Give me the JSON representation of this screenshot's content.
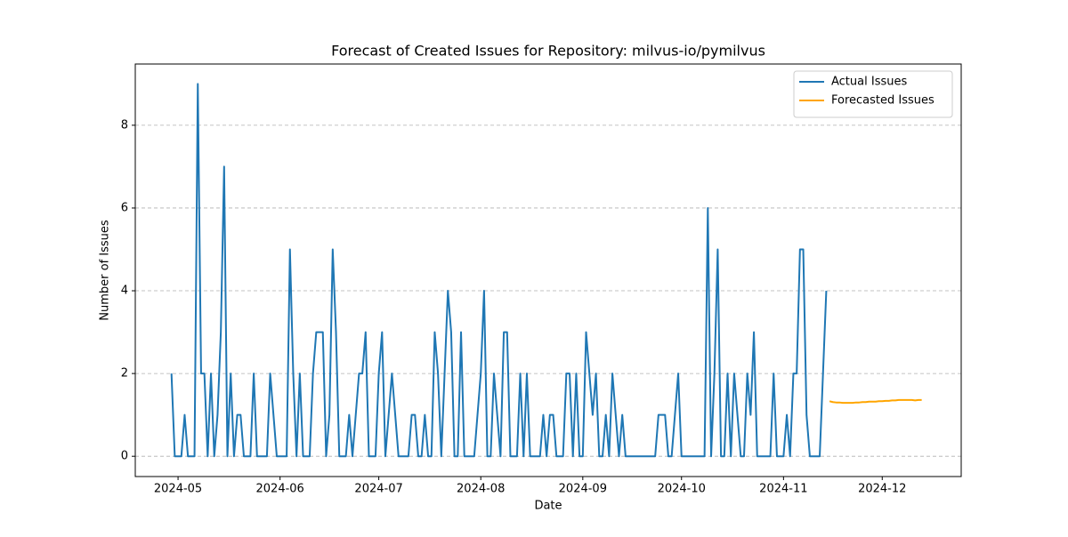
{
  "chart_data": {
    "type": "line",
    "title": "Forecast of Created Issues for Repository: milvus-io/pymilvus",
    "x_label": "Date",
    "y_label": "Number of Issues",
    "xlim": [
      "2024-04-18",
      "2024-12-25"
    ],
    "ylim": [
      -0.49,
      9.48
    ],
    "xticks": [
      {
        "value": "2024-05-01",
        "label": "2024-05"
      },
      {
        "value": "2024-06-01",
        "label": "2024-06"
      },
      {
        "value": "2024-07-01",
        "label": "2024-07"
      },
      {
        "value": "2024-08-01",
        "label": "2024-08"
      },
      {
        "value": "2024-09-01",
        "label": "2024-09"
      },
      {
        "value": "2024-10-01",
        "label": "2024-10"
      },
      {
        "value": "2024-11-01",
        "label": "2024-11"
      },
      {
        "value": "2024-12-01",
        "label": "2024-12"
      }
    ],
    "yticks": [
      0,
      2,
      4,
      6,
      8
    ],
    "grid": true,
    "legend": "upper right",
    "series": [
      {
        "name": "Actual Issues",
        "color": "#1f77b4",
        "x": [
          "2024-04-29",
          "2024-04-30",
          "2024-05-01",
          "2024-05-02",
          "2024-05-03",
          "2024-05-04",
          "2024-05-05",
          "2024-05-06",
          "2024-05-07",
          "2024-05-08",
          "2024-05-09",
          "2024-05-10",
          "2024-05-11",
          "2024-05-12",
          "2024-05-13",
          "2024-05-14",
          "2024-05-15",
          "2024-05-16",
          "2024-05-17",
          "2024-05-18",
          "2024-05-19",
          "2024-05-20",
          "2024-05-21",
          "2024-05-22",
          "2024-05-23",
          "2024-05-24",
          "2024-05-25",
          "2024-05-26",
          "2024-05-27",
          "2024-05-28",
          "2024-05-29",
          "2024-05-30",
          "2024-05-31",
          "2024-06-01",
          "2024-06-02",
          "2024-06-03",
          "2024-06-04",
          "2024-06-05",
          "2024-06-06",
          "2024-06-07",
          "2024-06-08",
          "2024-06-09",
          "2024-06-10",
          "2024-06-11",
          "2024-06-12",
          "2024-06-13",
          "2024-06-14",
          "2024-06-15",
          "2024-06-16",
          "2024-06-17",
          "2024-06-18",
          "2024-06-19",
          "2024-06-20",
          "2024-06-21",
          "2024-06-22",
          "2024-06-23",
          "2024-06-24",
          "2024-06-25",
          "2024-06-26",
          "2024-06-27",
          "2024-06-28",
          "2024-06-29",
          "2024-06-30",
          "2024-07-01",
          "2024-07-02",
          "2024-07-03",
          "2024-07-04",
          "2024-07-05",
          "2024-07-06",
          "2024-07-07",
          "2024-07-08",
          "2024-07-09",
          "2024-07-10",
          "2024-07-11",
          "2024-07-12",
          "2024-07-13",
          "2024-07-14",
          "2024-07-15",
          "2024-07-16",
          "2024-07-17",
          "2024-07-18",
          "2024-07-19",
          "2024-07-20",
          "2024-07-21",
          "2024-07-22",
          "2024-07-23",
          "2024-07-24",
          "2024-07-25",
          "2024-07-26",
          "2024-07-27",
          "2024-07-28",
          "2024-07-29",
          "2024-07-30",
          "2024-07-31",
          "2024-08-01",
          "2024-08-02",
          "2024-08-03",
          "2024-08-04",
          "2024-08-05",
          "2024-08-06",
          "2024-08-07",
          "2024-08-08",
          "2024-08-09",
          "2024-08-10",
          "2024-08-11",
          "2024-08-12",
          "2024-08-13",
          "2024-08-14",
          "2024-08-15",
          "2024-08-16",
          "2024-08-17",
          "2024-08-18",
          "2024-08-19",
          "2024-08-20",
          "2024-08-21",
          "2024-08-22",
          "2024-08-23",
          "2024-08-24",
          "2024-08-25",
          "2024-08-26",
          "2024-08-27",
          "2024-08-28",
          "2024-08-29",
          "2024-08-30",
          "2024-08-31",
          "2024-09-01",
          "2024-09-02",
          "2024-09-03",
          "2024-09-04",
          "2024-09-05",
          "2024-09-06",
          "2024-09-07",
          "2024-09-08",
          "2024-09-09",
          "2024-09-10",
          "2024-09-11",
          "2024-09-12",
          "2024-09-13",
          "2024-09-14",
          "2024-09-15",
          "2024-09-16",
          "2024-09-17",
          "2024-09-18",
          "2024-09-19",
          "2024-09-20",
          "2024-09-21",
          "2024-09-22",
          "2024-09-23",
          "2024-09-24",
          "2024-09-25",
          "2024-09-26",
          "2024-09-27",
          "2024-09-28",
          "2024-09-29",
          "2024-09-30",
          "2024-10-01",
          "2024-10-02",
          "2024-10-03",
          "2024-10-04",
          "2024-10-05",
          "2024-10-06",
          "2024-10-07",
          "2024-10-08",
          "2024-10-09",
          "2024-10-10",
          "2024-10-11",
          "2024-10-12",
          "2024-10-13",
          "2024-10-14",
          "2024-10-15",
          "2024-10-16",
          "2024-10-17",
          "2024-10-18",
          "2024-10-19",
          "2024-10-20",
          "2024-10-21",
          "2024-10-22",
          "2024-10-23",
          "2024-10-24",
          "2024-10-25",
          "2024-10-26",
          "2024-10-27",
          "2024-10-28",
          "2024-10-29",
          "2024-10-30",
          "2024-10-31",
          "2024-11-01",
          "2024-11-02",
          "2024-11-03",
          "2024-11-04",
          "2024-11-05",
          "2024-11-06",
          "2024-11-07",
          "2024-11-08",
          "2024-11-09",
          "2024-11-10",
          "2024-11-11",
          "2024-11-12",
          "2024-11-13",
          "2024-11-14"
        ],
        "values": [
          2,
          0,
          0,
          0,
          1,
          0,
          0,
          0,
          9,
          2,
          2,
          0,
          2,
          0,
          1,
          3,
          7,
          0,
          2,
          0,
          1,
          1,
          0,
          0,
          0,
          2,
          0,
          0,
          0,
          0,
          2,
          1,
          0,
          0,
          0,
          0,
          5,
          2,
          0,
          2,
          0,
          0,
          0,
          2,
          3,
          3,
          3,
          0,
          1,
          5,
          3,
          0,
          0,
          0,
          1,
          0,
          1,
          2,
          2,
          3,
          0,
          0,
          0,
          2,
          3,
          0,
          1,
          2,
          1,
          0,
          0,
          0,
          0,
          1,
          1,
          0,
          0,
          1,
          0,
          0,
          3,
          2,
          0,
          2,
          4,
          3,
          0,
          0,
          3,
          0,
          0,
          0,
          0,
          1,
          2,
          4,
          0,
          0,
          2,
          1,
          0,
          3,
          3,
          0,
          0,
          0,
          2,
          0,
          2,
          0,
          0,
          0,
          0,
          1,
          0,
          1,
          1,
          0,
          0,
          0,
          2,
          2,
          0,
          2,
          0,
          0,
          3,
          2,
          1,
          2,
          0,
          0,
          1,
          0,
          2,
          1,
          0,
          1,
          0,
          0,
          0,
          0,
          0,
          0,
          0,
          0,
          0,
          0,
          1,
          1,
          1,
          0,
          0,
          1,
          2,
          0,
          0,
          0,
          0,
          0,
          0,
          0,
          0,
          6,
          0,
          2,
          5,
          0,
          0,
          2,
          0,
          2,
          1,
          0,
          0,
          2,
          1,
          3,
          0,
          0,
          0,
          0,
          0,
          2,
          0,
          0,
          0,
          1,
          0,
          2,
          2,
          5,
          5,
          1,
          0,
          0,
          0,
          0,
          2,
          4
        ]
      },
      {
        "name": "Forecasted Issues",
        "color": "#ffa500",
        "x": [
          "2024-11-15",
          "2024-11-16",
          "2024-11-17",
          "2024-11-18",
          "2024-11-19",
          "2024-11-20",
          "2024-11-21",
          "2024-11-22",
          "2024-11-23",
          "2024-11-24",
          "2024-11-25",
          "2024-11-26",
          "2024-11-27",
          "2024-11-28",
          "2024-11-29",
          "2024-11-30",
          "2024-12-01",
          "2024-12-02",
          "2024-12-03",
          "2024-12-04",
          "2024-12-05",
          "2024-12-06",
          "2024-12-07",
          "2024-12-08",
          "2024-12-09",
          "2024-12-10",
          "2024-12-11",
          "2024-12-12",
          "2024-12-13"
        ],
        "values": [
          1.33,
          1.31,
          1.3,
          1.3,
          1.29,
          1.29,
          1.29,
          1.29,
          1.3,
          1.3,
          1.31,
          1.31,
          1.32,
          1.32,
          1.32,
          1.33,
          1.33,
          1.34,
          1.34,
          1.35,
          1.35,
          1.36,
          1.36,
          1.36,
          1.36,
          1.36,
          1.35,
          1.36,
          1.36
        ]
      }
    ]
  }
}
